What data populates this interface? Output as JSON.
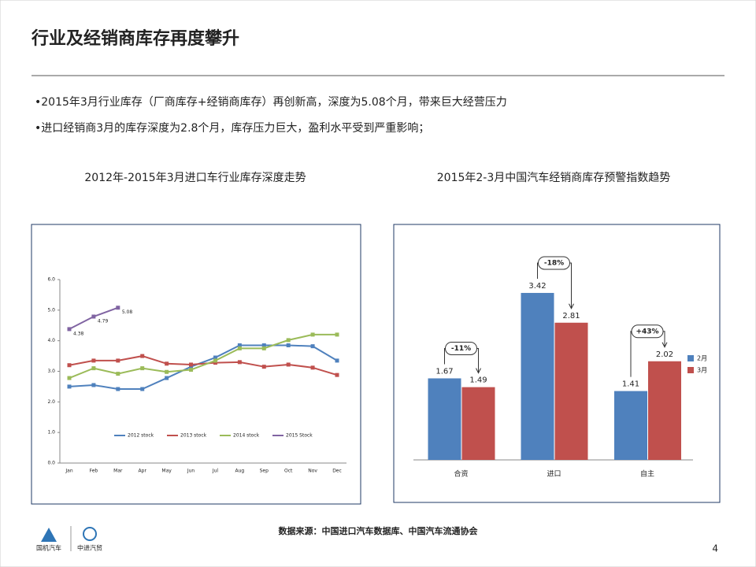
{
  "header": {
    "title": "行业及经销商库存再度攀升"
  },
  "bullets": [
    "•2015年3月行业库存（厂商库存+经销商库存）再创新高，深度为5.08个月，带来巨大经营压力",
    "•进口经销商3月的库存深度为2.8个月，库存压力巨大，盈利水平受到严重影响；"
  ],
  "footer": {
    "source": "数据来源：中国进口汽车数据库、中国汽车流通协会",
    "page": "4",
    "logo_left": "国机汽车",
    "logo_right": "中进汽贸"
  },
  "chart_data": [
    {
      "type": "line",
      "title": "2012年-2015年3月进口车行业库存深度走势",
      "categories": [
        "Jan",
        "Feb",
        "Mar",
        "Apr",
        "May",
        "Jun",
        "Jul",
        "Aug",
        "Sep",
        "Oct",
        "Nov",
        "Dec"
      ],
      "ylim": [
        0,
        6
      ],
      "yticks": [
        {
          "value": 0,
          "label": "0.0"
        },
        {
          "value": 1,
          "label": "1.0"
        },
        {
          "value": 2,
          "label": "2.0"
        },
        {
          "value": 3,
          "label": "3.0"
        },
        {
          "value": 4,
          "label": "4.0"
        },
        {
          "value": 5,
          "label": "5.0"
        },
        {
          "value": 6,
          "label": "6.0"
        }
      ],
      "series": [
        {
          "name": "2012 stock",
          "color": "#4f81bd",
          "values": [
            2.5,
            2.55,
            2.42,
            2.42,
            2.78,
            3.15,
            3.45,
            3.85,
            3.85,
            3.85,
            3.82,
            3.35
          ]
        },
        {
          "name": "2013 stock",
          "color": "#c0504d",
          "values": [
            3.2,
            3.35,
            3.35,
            3.5,
            3.25,
            3.22,
            3.28,
            3.3,
            3.15,
            3.22,
            3.12,
            2.88
          ]
        },
        {
          "name": "2014 stock",
          "color": "#9bbb59",
          "values": [
            2.78,
            3.1,
            2.92,
            3.1,
            2.98,
            3.05,
            3.35,
            3.75,
            3.75,
            4.02,
            4.2,
            4.2
          ]
        },
        {
          "name": "2015 Stock",
          "color": "#8064a2",
          "values": [
            4.38,
            4.79,
            5.08,
            null,
            null,
            null,
            null,
            null,
            null,
            null,
            null,
            null
          ],
          "data_labels": true
        }
      ]
    },
    {
      "type": "bar",
      "title": "2015年2-3月中国汽车经销商库存预警指数趋势",
      "categories": [
        "合资",
        "进口",
        "自主"
      ],
      "series": [
        {
          "name": "2月",
          "color": "#4f81bd",
          "values": [
            1.67,
            3.42,
            1.41
          ]
        },
        {
          "name": "3月",
          "color": "#c0504d",
          "values": [
            1.49,
            2.81,
            2.02
          ]
        }
      ],
      "annotations": [
        "-11%",
        "-18%",
        "+43%"
      ]
    }
  ]
}
